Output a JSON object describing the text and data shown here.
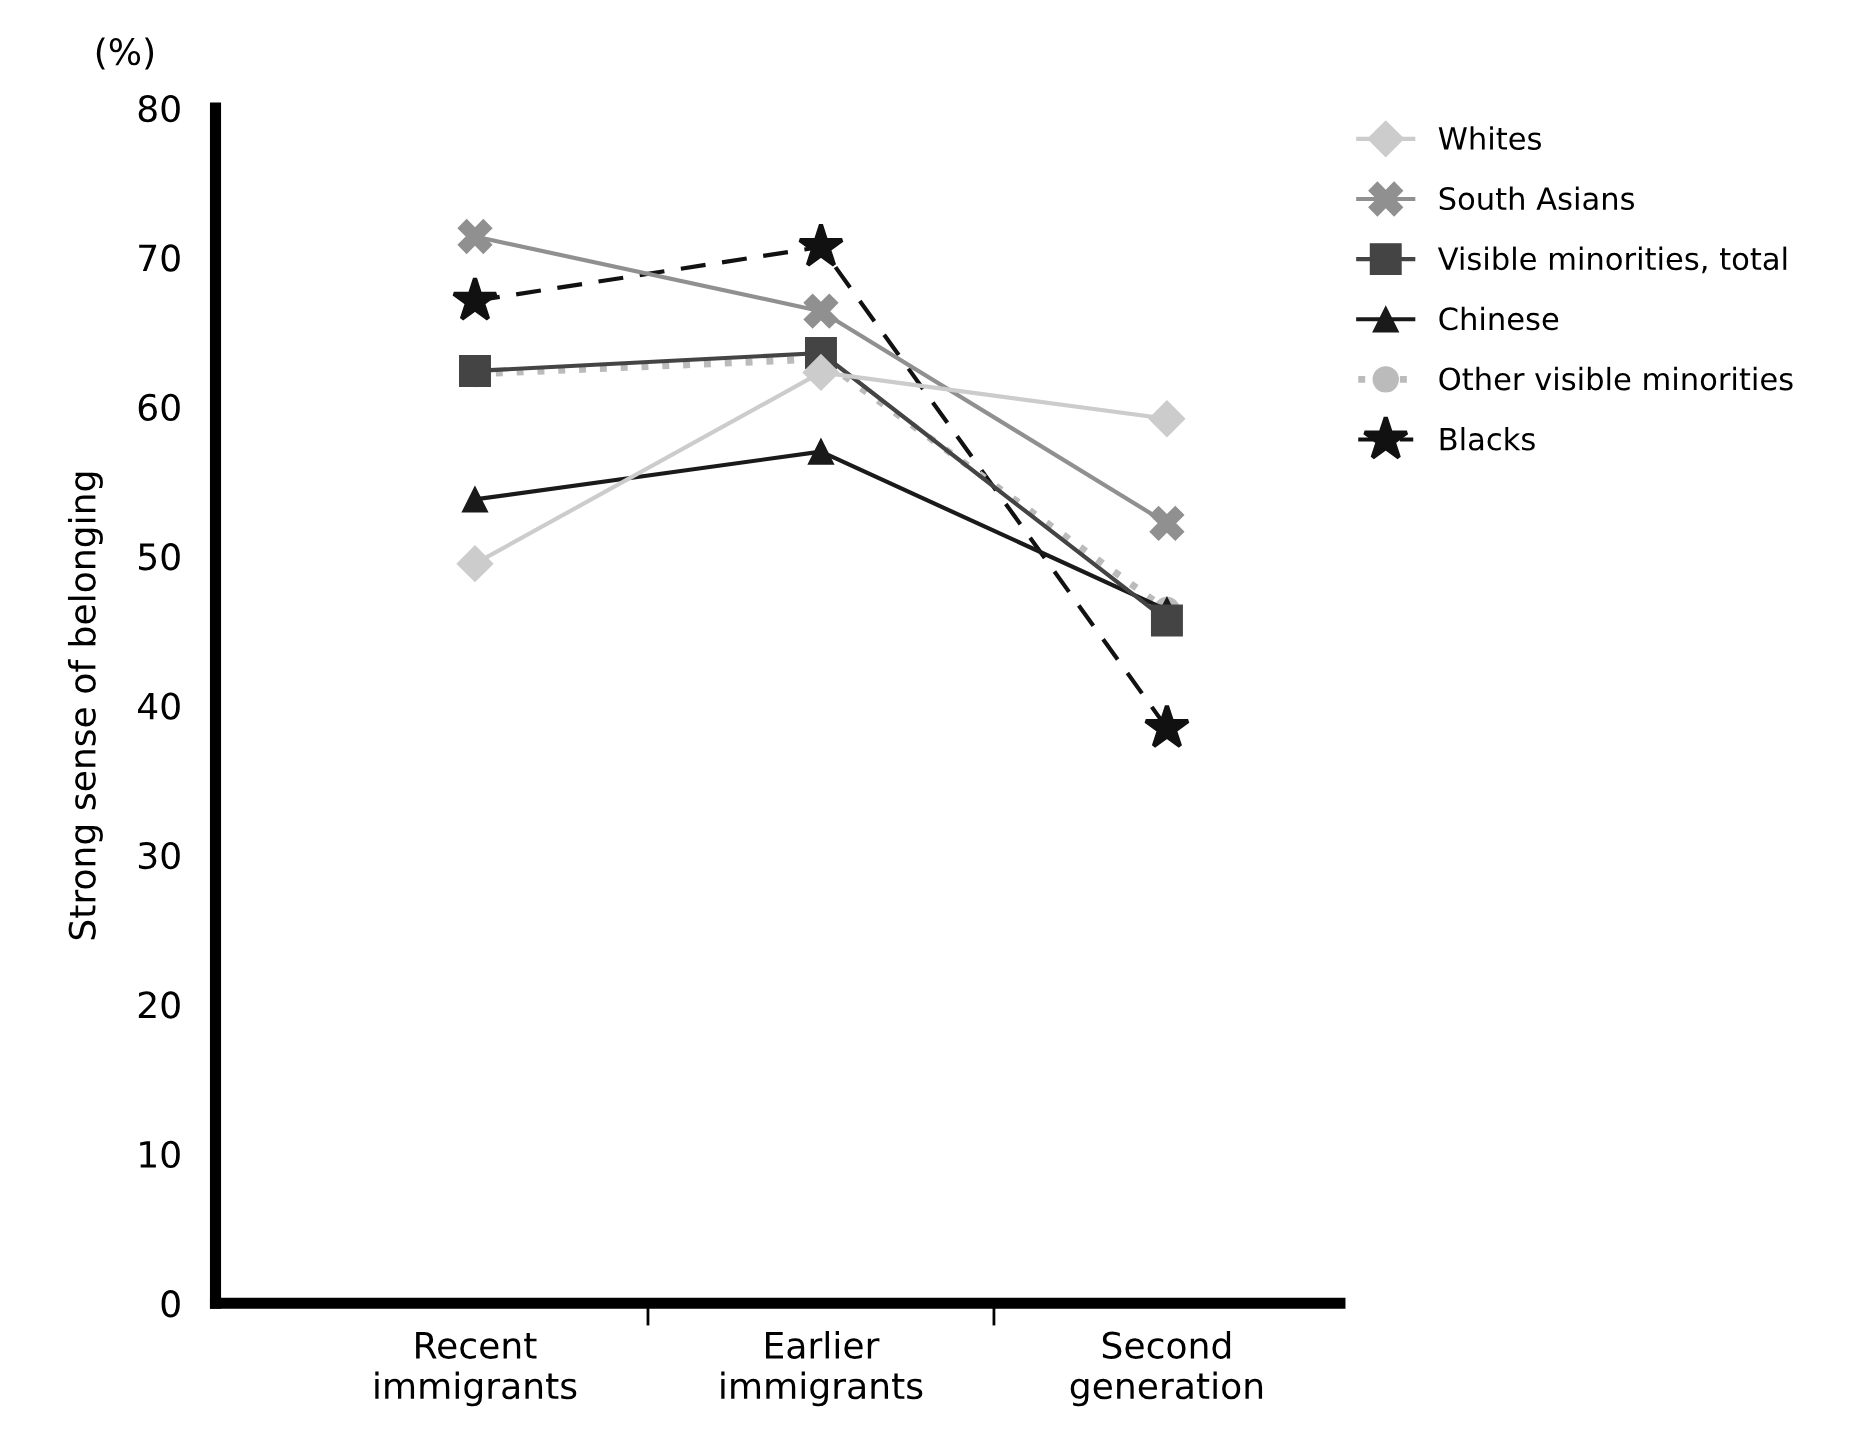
{
  "chart_data": {
    "type": "line",
    "ylabel": "Strong sense of belonging",
    "annotations": [
      "(%)"
    ],
    "categories": [
      "Recent\nimmigrants",
      "Earlier\nimmigrants",
      "Second\ngeneration"
    ],
    "ylim": [
      0,
      80
    ],
    "yticks": [
      0,
      10,
      20,
      30,
      40,
      50,
      60,
      70,
      80
    ],
    "grid": false,
    "legend": "right",
    "series": [
      {
        "name": "Whites",
        "color": "#cccccc",
        "marker": "diamond",
        "line_style": "solid",
        "values": [
          49.5,
          62.3,
          59.2
        ]
      },
      {
        "name": "South Asians",
        "color": "#909090",
        "marker": "cross",
        "line_style": "solid",
        "values": [
          71.4,
          66.4,
          52.2
        ]
      },
      {
        "name": "Visible minorities, total",
        "color": "#444444",
        "marker": "square",
        "line_style": "solid",
        "values": [
          62.4,
          63.6,
          45.7
        ]
      },
      {
        "name": "Chinese",
        "color": "#1a1a1a",
        "marker": "triangle",
        "line_style": "solid",
        "values": [
          53.8,
          57.0,
          46.4
        ]
      },
      {
        "name": "Other visible minorities",
        "color": "#bbbbbb",
        "marker": "circle",
        "line_style": "dotted",
        "values": [
          62.2,
          63.2,
          46.4
        ]
      },
      {
        "name": "Blacks",
        "color": "#111111",
        "marker": "star",
        "line_style": "dashed",
        "values": [
          67.1,
          70.7,
          38.5
        ]
      }
    ]
  }
}
